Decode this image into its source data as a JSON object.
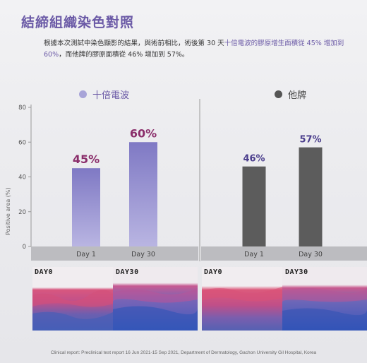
{
  "title": "結締組織染色對照",
  "description": {
    "part1": "根據本次測試中染色顯影的結果，與術前相比，術後第 30 天",
    "highlight": "十倍電波的膠原增生面積從 45% 增加到 60%",
    "part2": "，而他牌的膠原面積從 46% 增加到 57%。"
  },
  "legend": [
    {
      "label": "十倍電波",
      "color": "#a8a4d8"
    },
    {
      "label": "他牌",
      "color": "#555555"
    }
  ],
  "chart_data": {
    "type": "bar",
    "ylabel": "Positive area (%)",
    "ylim": [
      0,
      80
    ],
    "yticks": [
      0,
      20,
      40,
      60,
      80
    ],
    "grid": false,
    "panels": [
      {
        "series": "十倍電波",
        "categories": [
          "Day 1",
          "Day 30"
        ],
        "values": [
          45,
          60
        ],
        "labels": [
          "45%",
          "60%"
        ],
        "bar_color": "#a8a4d8",
        "label_color": "#8a2d6a"
      },
      {
        "series": "他牌",
        "categories": [
          "Day 1",
          "Day 30"
        ],
        "values": [
          46,
          57
        ],
        "labels": [
          "46%",
          "57%"
        ],
        "bar_color": "#5c5c5c",
        "label_color": "#4a3d8c"
      }
    ]
  },
  "histology": {
    "labels": [
      "DAY0",
      "DAY30",
      "DAY0",
      "DAY30"
    ]
  },
  "footer": "Clinical report: Preclinical test report 16 Jun 2021-15 Sep 2021, Department of Dermatology, Gachon University Gil Hospital, Korea"
}
